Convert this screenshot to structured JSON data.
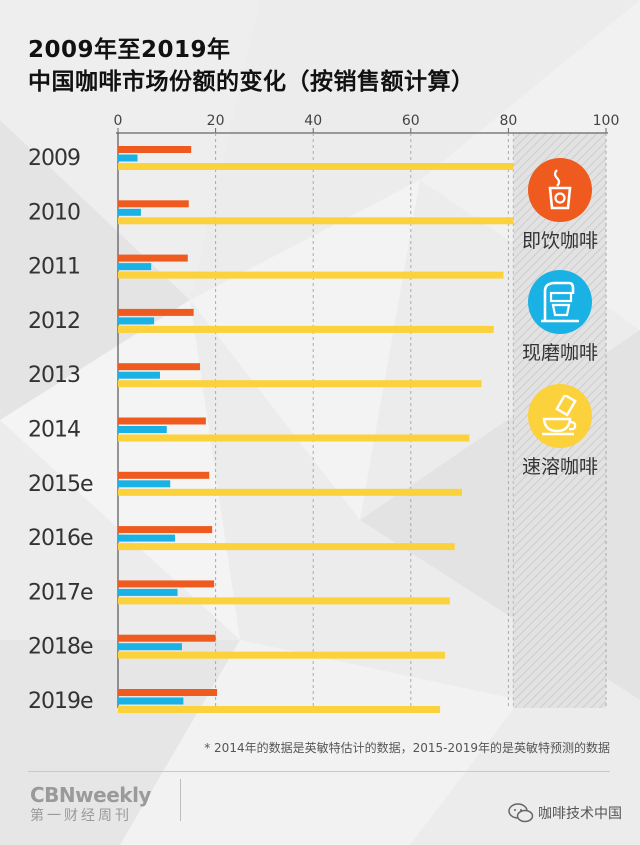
{
  "title_line1": "2009年至2019年",
  "title_line2": "中国咖啡市场份额的变化（按销售额计算）",
  "legend": [
    {
      "label": "即饮咖啡",
      "color": "#ef5a1f",
      "icon": "takeaway-cup-icon"
    },
    {
      "label": "现磨咖啡",
      "color": "#1ab2e5",
      "icon": "coffee-machine-icon"
    },
    {
      "label": "速溶咖啡",
      "color": "#fbd13c",
      "icon": "instant-coffee-icon"
    }
  ],
  "footnote": "* 2014年的数据是英敏特估计的数据，2015-2019年的是英敏特预测的数据",
  "brand": {
    "en": "CBNweekly",
    "cn": "第一财经周刊"
  },
  "watermark": "咖啡技术中国",
  "chart_data": {
    "type": "bar",
    "orientation": "horizontal",
    "categories": [
      "2009",
      "2010",
      "2011",
      "2012",
      "2013",
      "2014",
      "2015e",
      "2016e",
      "2017e",
      "2018e",
      "2019e"
    ],
    "x_ticks": [
      0,
      20,
      40,
      60,
      80,
      100
    ],
    "xlim": [
      0,
      100
    ],
    "shaded_region": [
      81,
      100
    ],
    "series": [
      {
        "name": "即饮咖啡",
        "color": "#ef5a1f",
        "values": [
          15,
          14.5,
          14.3,
          15.5,
          16.8,
          18,
          18.7,
          19.3,
          19.7,
          20,
          20.3
        ]
      },
      {
        "name": "现磨咖啡",
        "color": "#1ab2e5",
        "values": [
          4,
          4.7,
          6.8,
          7.4,
          8.6,
          10,
          10.7,
          11.7,
          12.2,
          13.1,
          13.4
        ]
      },
      {
        "name": "速溶咖啡",
        "color": "#fbd13c",
        "values": [
          81,
          81,
          79,
          77,
          74.5,
          72,
          70.5,
          69,
          68,
          67,
          66
        ]
      }
    ]
  }
}
